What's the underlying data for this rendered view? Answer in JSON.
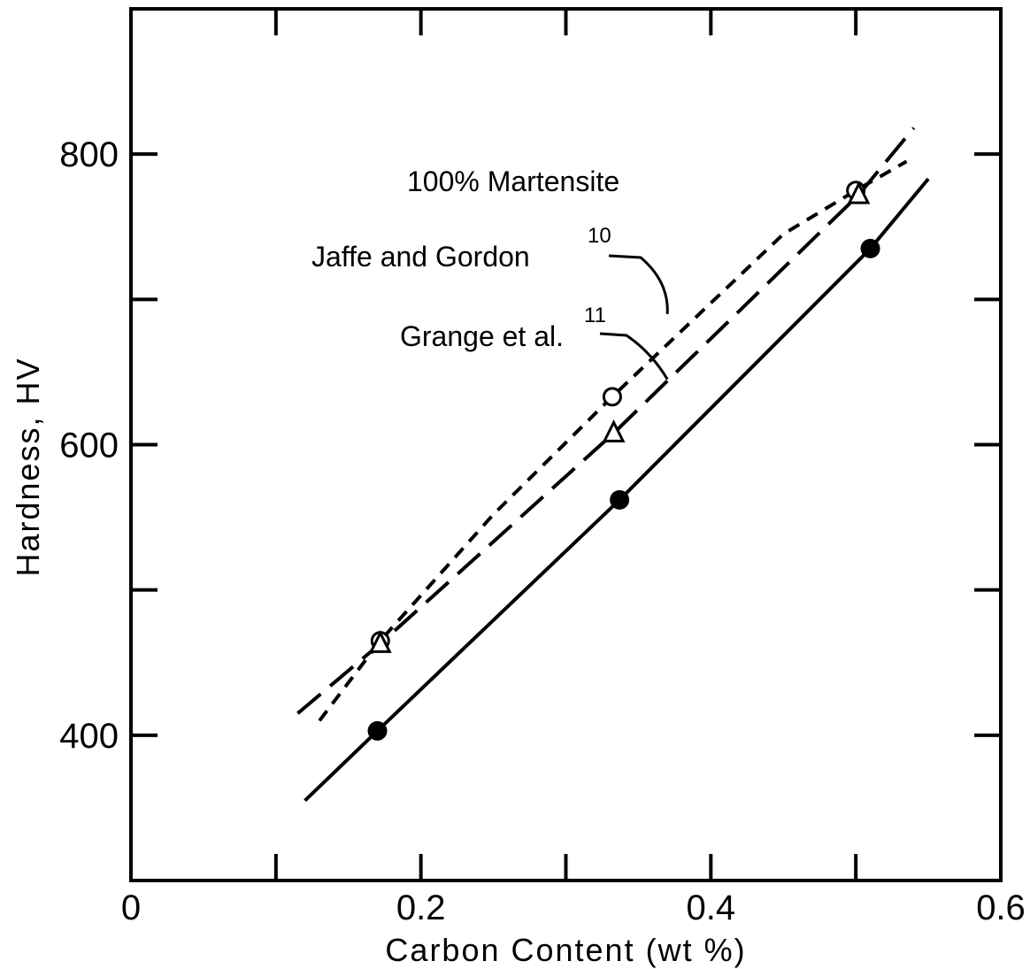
{
  "chart_data": {
    "type": "line",
    "title": "100% Martensite",
    "xlabel": "Carbon Content (wt %)",
    "ylabel": "Hardness, HV",
    "xlim": [
      0,
      0.6
    ],
    "ylim": [
      300,
      900
    ],
    "x_ticks": [
      "0",
      "0.2",
      "0.4",
      "0.6"
    ],
    "y_ticks": [
      "400",
      "600",
      "800"
    ],
    "x_tick_values": [
      0,
      0.2,
      0.4,
      0.6
    ],
    "y_tick_values": [
      400,
      600,
      800
    ],
    "x_minor_ticks": [
      0.1,
      0.3,
      0.5
    ],
    "y_minor_ticks": [
      500,
      700
    ],
    "grid": false,
    "series": [
      {
        "style": "solid",
        "marker": "filled-circle",
        "points": [
          [
            0.17,
            403
          ],
          [
            0.337,
            562
          ],
          [
            0.51,
            735
          ]
        ],
        "line": [
          [
            0.12,
            355
          ],
          [
            0.17,
            403
          ],
          [
            0.337,
            562
          ],
          [
            0.51,
            735
          ],
          [
            0.55,
            783
          ]
        ]
      },
      {
        "name": "Jaffe and Gordon",
        "ref": "10",
        "style": "short-dash",
        "marker": "open-circle",
        "points": [
          [
            0.172,
            465
          ],
          [
            0.332,
            633
          ],
          [
            0.5,
            775
          ]
        ],
        "line": [
          [
            0.13,
            410
          ],
          [
            0.172,
            465
          ],
          [
            0.25,
            552
          ],
          [
            0.332,
            633
          ],
          [
            0.45,
            745
          ],
          [
            0.5,
            775
          ],
          [
            0.535,
            795
          ]
        ]
      },
      {
        "name": "Grange et al.",
        "ref": "11",
        "style": "long-dash",
        "marker": "open-triangle",
        "points": [
          [
            0.172,
            463
          ],
          [
            0.333,
            608
          ],
          [
            0.502,
            772
          ]
        ],
        "line": [
          [
            0.115,
            415
          ],
          [
            0.172,
            463
          ],
          [
            0.333,
            608
          ],
          [
            0.502,
            772
          ],
          [
            0.54,
            818
          ]
        ]
      }
    ],
    "annotations": [
      {
        "text": "100% Martensite"
      },
      {
        "text": "Jaffe and Gordon",
        "sup": "10",
        "points_to": [
          0.37,
          690
        ]
      },
      {
        "text": "Grange et al.",
        "sup": "11",
        "points_to": [
          0.37,
          645
        ]
      }
    ]
  }
}
